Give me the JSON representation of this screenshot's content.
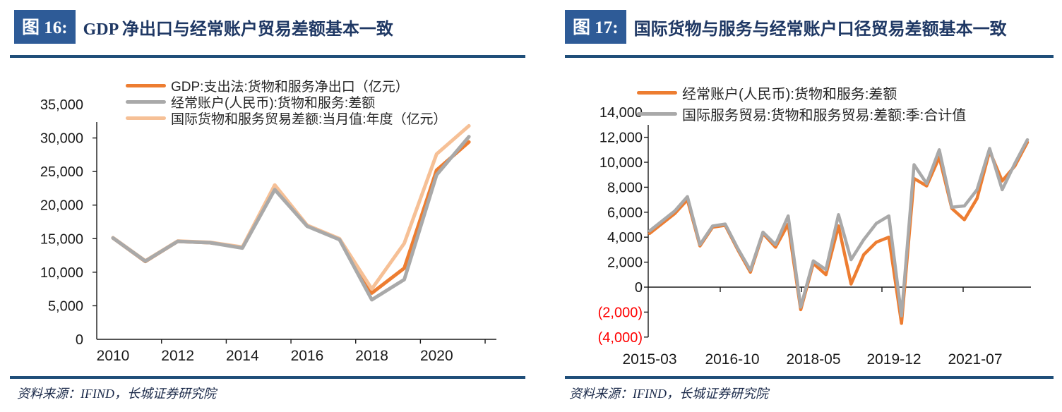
{
  "panels": [
    {
      "figure_label": "图 16:",
      "title": "GDP 净出口与经常账户贸易差额基本一致",
      "source": "资料来源：IFIND，长城证券研究院"
    },
    {
      "figure_label": "图 17:",
      "title": "国际货物与服务与经常账户口径贸易差额基本一致",
      "source": "资料来源：IFIND，长城证券研究院"
    }
  ],
  "colors": {
    "badge_blue": "#2E5B97",
    "title_navy": "#1F3864",
    "rule_blue": "#1F4E79",
    "series_orange": "#ED7D31",
    "series_gray": "#A9A9A9",
    "series_light_orange": "#F6C096",
    "negative_label_red": "#FF0000",
    "axis_black": "#1a1a1a"
  },
  "chart_data": [
    {
      "type": "line",
      "title": "GDP 净出口与经常账户贸易差额基本一致",
      "categories": [
        2010,
        2011,
        2012,
        2013,
        2014,
        2015,
        2016,
        2017,
        2018,
        2019,
        2020,
        2021
      ],
      "x_tick_labels": [
        "2010",
        "2012",
        "2014",
        "2016",
        "2018",
        "2020"
      ],
      "ylim": [
        0,
        35000
      ],
      "ytick_step": 5000,
      "grid": false,
      "legend_position": "top",
      "series": [
        {
          "name": "GDP:支出法:货物和服务净出口（亿元）",
          "color": "#ED7D31",
          "values": [
            15100,
            11600,
            14600,
            14400,
            13700,
            22400,
            16900,
            14900,
            6900,
            10600,
            25200,
            29400
          ]
        },
        {
          "name": "经常账户(人民币):货物和服务:差额",
          "color": "#A9A9A9",
          "values": [
            15100,
            11650,
            14600,
            14400,
            13600,
            22300,
            16850,
            14850,
            5900,
            8900,
            24500,
            30200
          ]
        },
        {
          "name": "国际货物和服务贸易差额:当月值:年度（亿元）",
          "color": "#F6C096",
          "values": [
            15150,
            11700,
            14650,
            14450,
            13750,
            23000,
            17000,
            15000,
            7500,
            14300,
            27600,
            31800
          ]
        }
      ]
    },
    {
      "type": "line",
      "title": "国际货物与服务与经常账户口径贸易差额基本一致",
      "x_tick_labels": [
        "2015-03",
        "2016-10",
        "2018-05",
        "2019-12",
        "2021-07"
      ],
      "x_note": "quarterly points from 2015-03 to 2022-06",
      "ylim": [
        -4000,
        14000
      ],
      "ytick_step": 2000,
      "grid": false,
      "legend_position": "top",
      "negative_labels_red_parentheses": true,
      "series": [
        {
          "name": "经常账户(人民币):货物和服务:差额",
          "color": "#ED7D31",
          "values": [
            4300,
            5100,
            5900,
            7000,
            3300,
            4800,
            4950,
            3000,
            1200,
            4300,
            3200,
            5050,
            -1800,
            1900,
            1000,
            4900,
            250,
            2600,
            3600,
            4000,
            -2900,
            8700,
            8100,
            10400,
            6300,
            5400,
            7100,
            10900,
            8500,
            9700,
            11600
          ]
        },
        {
          "name": "国际服务贸易:货物和服务贸易:差额:季:合计值",
          "color": "#A9A9A9",
          "values": [
            4500,
            5300,
            6100,
            7250,
            3400,
            4900,
            5050,
            3100,
            1350,
            4400,
            3400,
            5700,
            -1600,
            2100,
            1400,
            5800,
            2200,
            3800,
            5100,
            5700,
            -2300,
            9800,
            8300,
            11000,
            6400,
            6500,
            7800,
            11100,
            7800,
            9900,
            11800
          ]
        }
      ]
    }
  ]
}
